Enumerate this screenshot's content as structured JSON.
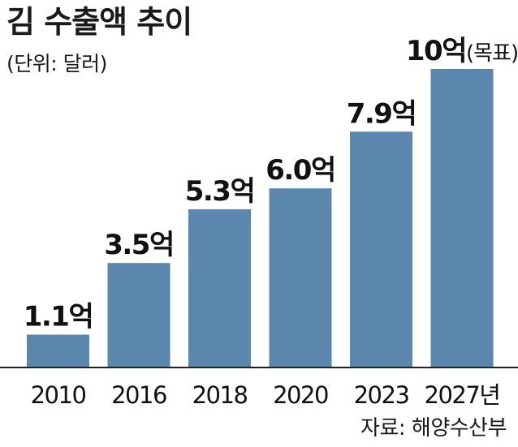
{
  "header": {
    "title": "김 수출액 추이",
    "unit_note": "(단위: 달러)"
  },
  "footer": {
    "source": "자료: 해양수산부"
  },
  "chart_data": {
    "type": "bar",
    "title": "김 수출액 추이",
    "unit": "(단위: 달러)",
    "categories": [
      "2010",
      "2016",
      "2018",
      "2020",
      "2023",
      "2027년"
    ],
    "values": [
      1.1,
      3.5,
      5.3,
      6.0,
      7.9,
      10
    ],
    "value_labels": [
      "1.1억",
      "3.5억",
      "5.3억",
      "6.0억",
      "7.9억",
      "10억"
    ],
    "value_notes": [
      "",
      "",
      "",
      "",
      "",
      "(목표)"
    ],
    "ylim": [
      0,
      10
    ],
    "grid": false,
    "bar_color": "#5b86ad"
  }
}
